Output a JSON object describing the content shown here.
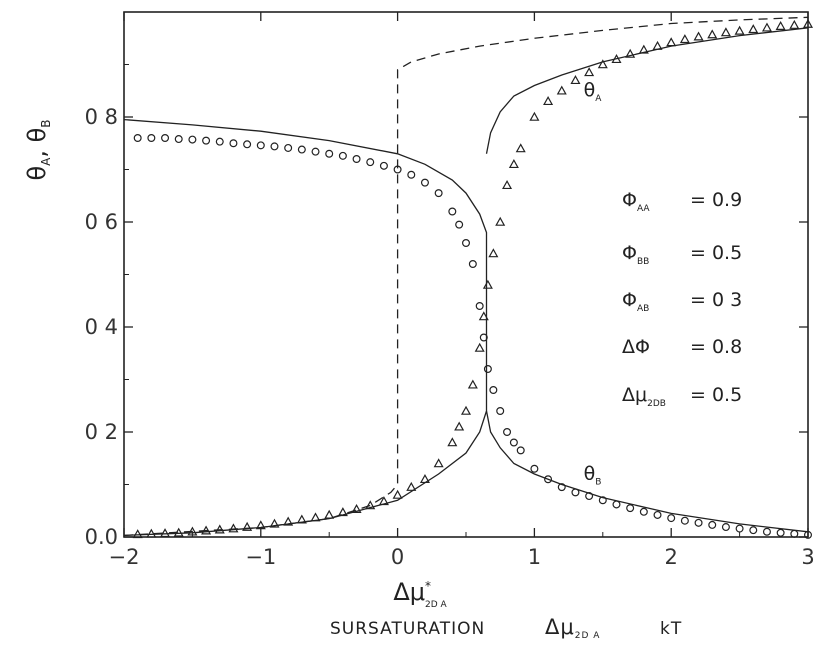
{
  "chart_data": {
    "type": "line",
    "title": "",
    "ylabel": {
      "main": "θ",
      "sub1": "A",
      "sep": ", ",
      "main2": "θ",
      "sub2": "B"
    },
    "xlabel_symbol": {
      "main": "Δμ",
      "sup": "*",
      "sub": "2D A"
    },
    "xlabel_caption": {
      "word": "SURSATURATION",
      "symbol": "Δμ",
      "sub": "2D A",
      "unit": "kT"
    },
    "xlim": [
      -2,
      3
    ],
    "ylim": [
      0,
      1
    ],
    "xticks": [
      {
        "v": -2,
        "label": "−2"
      },
      {
        "v": -1,
        "label": "−1"
      },
      {
        "v": 0,
        "label": "0"
      },
      {
        "v": 1,
        "label": "1"
      },
      {
        "v": 2,
        "label": "2"
      },
      {
        "v": 3,
        "label": "3"
      }
    ],
    "yticks": [
      {
        "v": 0.0,
        "label": "0.0"
      },
      {
        "v": 0.2,
        "label": "0 2"
      },
      {
        "v": 0.4,
        "label": "0 4"
      },
      {
        "v": 0.6,
        "label": "0 6"
      },
      {
        "v": 0.8,
        "label": "0 8"
      }
    ],
    "curve_labels": [
      {
        "main": "θ",
        "sub": "A",
        "x": 1.36,
        "y": 0.84
      },
      {
        "main": "θ",
        "sub": "B",
        "x": 1.36,
        "y": 0.11
      }
    ],
    "parameters": [
      {
        "sym": "Φ",
        "sub": "AA",
        "eq": "= 0.9"
      },
      {
        "sym": "Φ",
        "sub": "BB",
        "eq": "= 0.5"
      },
      {
        "sym": "Φ",
        "sub": "AB",
        "eq": "= 0 3"
      },
      {
        "sym": "ΔΦ",
        "sub": "",
        "eq": "= 0.8"
      },
      {
        "sym": "Δμ",
        "sub": "2DB",
        "eq": "= 0.5"
      }
    ],
    "series": [
      {
        "style": "solid",
        "points": [
          [
            -2,
            0.795
          ],
          [
            -1.5,
            0.785
          ],
          [
            -1,
            0.773
          ],
          [
            -0.5,
            0.755
          ],
          [
            0,
            0.73
          ],
          [
            0.2,
            0.71
          ],
          [
            0.4,
            0.68
          ],
          [
            0.5,
            0.655
          ],
          [
            0.6,
            0.615
          ],
          [
            0.65,
            0.58
          ],
          [
            0.65,
            0.24
          ],
          [
            0.6,
            0.2
          ],
          [
            0.5,
            0.16
          ],
          [
            0.3,
            0.12
          ],
          [
            0,
            0.07
          ],
          [
            -0.5,
            0.035
          ],
          [
            -1,
            0.018
          ],
          [
            -1.5,
            0.008
          ],
          [
            -2,
            0.003
          ]
        ]
      },
      {
        "style": "solid",
        "points": [
          [
            0.65,
            0.73
          ],
          [
            0.68,
            0.77
          ],
          [
            0.75,
            0.81
          ],
          [
            0.85,
            0.84
          ],
          [
            1,
            0.86
          ],
          [
            1.2,
            0.88
          ],
          [
            1.5,
            0.905
          ],
          [
            2,
            0.935
          ],
          [
            2.5,
            0.955
          ],
          [
            3,
            0.97
          ]
        ]
      },
      {
        "style": "solid",
        "points": [
          [
            0.65,
            0.24
          ],
          [
            0.68,
            0.2
          ],
          [
            0.75,
            0.17
          ],
          [
            0.85,
            0.14
          ],
          [
            1,
            0.12
          ],
          [
            1.2,
            0.1
          ],
          [
            1.5,
            0.075
          ],
          [
            2,
            0.045
          ],
          [
            2.5,
            0.025
          ],
          [
            3,
            0.01
          ]
        ]
      },
      {
        "style": "dashed",
        "points": [
          [
            -2,
            0.003
          ],
          [
            -1,
            0.018
          ],
          [
            -0.5,
            0.035
          ],
          [
            -0.2,
            0.06
          ],
          [
            -0.05,
            0.085
          ],
          [
            0,
            0.1
          ],
          [
            0,
            0.89
          ],
          [
            0.1,
            0.905
          ],
          [
            0.3,
            0.92
          ],
          [
            0.6,
            0.935
          ],
          [
            1,
            0.95
          ],
          [
            1.5,
            0.965
          ],
          [
            2,
            0.978
          ],
          [
            2.5,
            0.985
          ],
          [
            3,
            0.99
          ]
        ]
      },
      {
        "style": "circle",
        "points": [
          [
            -1.9,
            0.76
          ],
          [
            -1.8,
            0.76
          ],
          [
            -1.7,
            0.76
          ],
          [
            -1.6,
            0.758
          ],
          [
            -1.5,
            0.757
          ],
          [
            -1.4,
            0.755
          ],
          [
            -1.3,
            0.753
          ],
          [
            -1.2,
            0.75
          ],
          [
            -1.1,
            0.748
          ],
          [
            -1,
            0.746
          ],
          [
            -0.9,
            0.744
          ],
          [
            -0.8,
            0.741
          ],
          [
            -0.7,
            0.738
          ],
          [
            -0.6,
            0.734
          ],
          [
            -0.5,
            0.73
          ],
          [
            -0.4,
            0.726
          ],
          [
            -0.3,
            0.72
          ],
          [
            -0.2,
            0.714
          ],
          [
            -0.1,
            0.707
          ],
          [
            0,
            0.7
          ],
          [
            0.1,
            0.69
          ],
          [
            0.2,
            0.675
          ],
          [
            0.3,
            0.655
          ],
          [
            0.4,
            0.62
          ],
          [
            0.45,
            0.595
          ],
          [
            0.5,
            0.56
          ],
          [
            0.55,
            0.52
          ],
          [
            0.6,
            0.44
          ],
          [
            0.63,
            0.38
          ],
          [
            0.66,
            0.32
          ],
          [
            0.7,
            0.28
          ],
          [
            0.75,
            0.24
          ],
          [
            0.8,
            0.2
          ],
          [
            0.85,
            0.18
          ],
          [
            0.9,
            0.165
          ],
          [
            1,
            0.13
          ],
          [
            1.1,
            0.11
          ],
          [
            1.2,
            0.095
          ],
          [
            1.3,
            0.085
          ],
          [
            1.4,
            0.078
          ],
          [
            1.5,
            0.07
          ],
          [
            1.6,
            0.062
          ],
          [
            1.7,
            0.055
          ],
          [
            1.8,
            0.048
          ],
          [
            1.9,
            0.042
          ],
          [
            2,
            0.036
          ],
          [
            2.1,
            0.031
          ],
          [
            2.2,
            0.027
          ],
          [
            2.3,
            0.023
          ],
          [
            2.4,
            0.019
          ],
          [
            2.5,
            0.016
          ],
          [
            2.6,
            0.013
          ],
          [
            2.7,
            0.01
          ],
          [
            2.8,
            0.008
          ],
          [
            2.9,
            0.006
          ],
          [
            3,
            0.004
          ]
        ]
      },
      {
        "style": "triangle",
        "points": [
          [
            -1.9,
            0.005
          ],
          [
            -1.8,
            0.006
          ],
          [
            -1.7,
            0.007
          ],
          [
            -1.6,
            0.008
          ],
          [
            -1.5,
            0.01
          ],
          [
            -1.4,
            0.012
          ],
          [
            -1.3,
            0.014
          ],
          [
            -1.2,
            0.016
          ],
          [
            -1.1,
            0.019
          ],
          [
            -1,
            0.022
          ],
          [
            -0.9,
            0.025
          ],
          [
            -0.8,
            0.029
          ],
          [
            -0.7,
            0.033
          ],
          [
            -0.6,
            0.037
          ],
          [
            -0.5,
            0.042
          ],
          [
            -0.4,
            0.047
          ],
          [
            -0.3,
            0.053
          ],
          [
            -0.2,
            0.06
          ],
          [
            -0.1,
            0.068
          ],
          [
            0,
            0.08
          ],
          [
            0.1,
            0.095
          ],
          [
            0.2,
            0.11
          ],
          [
            0.3,
            0.14
          ],
          [
            0.4,
            0.18
          ],
          [
            0.45,
            0.21
          ],
          [
            0.5,
            0.24
          ],
          [
            0.55,
            0.29
          ],
          [
            0.6,
            0.36
          ],
          [
            0.63,
            0.42
          ],
          [
            0.66,
            0.48
          ],
          [
            0.7,
            0.54
          ],
          [
            0.75,
            0.6
          ],
          [
            0.8,
            0.67
          ],
          [
            0.85,
            0.71
          ],
          [
            0.9,
            0.74
          ],
          [
            1,
            0.8
          ],
          [
            1.1,
            0.83
          ],
          [
            1.2,
            0.85
          ],
          [
            1.3,
            0.87
          ],
          [
            1.4,
            0.885
          ],
          [
            1.5,
            0.9
          ],
          [
            1.6,
            0.91
          ],
          [
            1.7,
            0.92
          ],
          [
            1.8,
            0.928
          ],
          [
            1.9,
            0.935
          ],
          [
            2,
            0.942
          ],
          [
            2.1,
            0.948
          ],
          [
            2.2,
            0.953
          ],
          [
            2.3,
            0.957
          ],
          [
            2.4,
            0.961
          ],
          [
            2.5,
            0.964
          ],
          [
            2.6,
            0.967
          ],
          [
            2.7,
            0.97
          ],
          [
            2.8,
            0.973
          ],
          [
            2.9,
            0.975
          ],
          [
            3,
            0.977
          ]
        ]
      }
    ]
  }
}
